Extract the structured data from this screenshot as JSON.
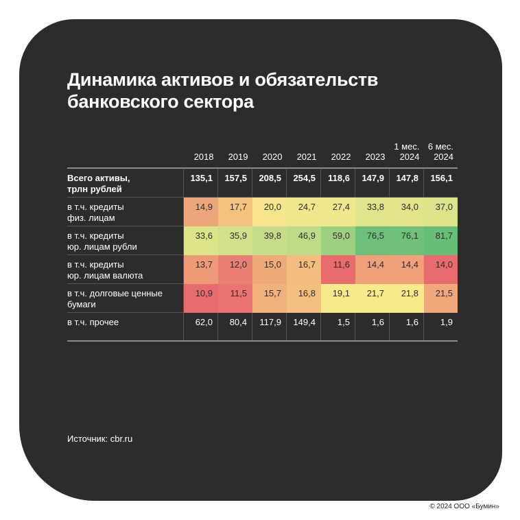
{
  "title_line1": "Динамика активов и обязательств",
  "title_line2": "банковского сектора",
  "columns": [
    [
      "",
      "2018"
    ],
    [
      "",
      "2019"
    ],
    [
      "",
      "2020"
    ],
    [
      "",
      "2021"
    ],
    [
      "",
      "2022"
    ],
    [
      "",
      "2023"
    ],
    [
      "1 мес.",
      "2024"
    ],
    [
      "6 мес.",
      "2024"
    ]
  ],
  "rows": [
    {
      "l1": "Всего активы,",
      "l2": "трлн рублей",
      "values": [
        "135,1",
        "157,5",
        "208,5",
        "254,5",
        "118,6",
        "147,9",
        "147,8",
        "156,1"
      ],
      "colors": null
    },
    {
      "l1": "в т.ч. кредиты",
      "l2": "физ. лицам",
      "values": [
        "14,9",
        "17,7",
        "20,0",
        "24,7",
        "27,4",
        "33,8",
        "34,0",
        "37,0"
      ],
      "colors": [
        "#eda57a",
        "#f3c27f",
        "#f6e58a",
        "#f0e68c",
        "#eee78c",
        "#e0e48a",
        "#e3e48a",
        "#dde389"
      ]
    },
    {
      "l1": "в т.ч. кредиты",
      "l2": "юр. лицам рубли",
      "values": [
        "33,6",
        "35,9",
        "39,8",
        "46,9",
        "59,0",
        "76,5",
        "76,1",
        "81,7"
      ],
      "colors": [
        "#dde389",
        "#d2e08a",
        "#c6dc88",
        "#bedb87",
        "#9fd081",
        "#6fbf78",
        "#71c079",
        "#68bd77"
      ]
    },
    {
      "l1": "в т.ч. кредиты",
      "l2": "юр. лицам валюта",
      "values": [
        "13,7",
        "12,0",
        "15,0",
        "16,7",
        "11,6",
        "14,4",
        "14,4",
        "14,0"
      ],
      "colors": [
        "#ef9a77",
        "#ea7f73",
        "#f0aa7a",
        "#f3bd7e",
        "#e86c6e",
        "#efa178",
        "#efa178",
        "#e86c6e"
      ]
    },
    {
      "l1": "в т.ч. долговые ценные",
      "l2": "бумаги",
      "values": [
        "10,9",
        "11,5",
        "15,7",
        "16,8",
        "19,1",
        "21,7",
        "21,8",
        "21,5"
      ],
      "colors": [
        "#e86c6e",
        "#ea7471",
        "#f0b17c",
        "#f3bf7e",
        "#f8e98a",
        "#f8e98a",
        "#f8e98a",
        "#f0a779"
      ]
    },
    {
      "l1": "в т.ч. прочее",
      "l2": "",
      "values": [
        "62,0",
        "80,4",
        "117,9",
        "149,4",
        "1,5",
        "1,6",
        "1,6",
        "1,9"
      ],
      "colors": null
    }
  ],
  "source": "Источник: cbr.ru",
  "copyright": "© 2024 ООО «Бумин»"
}
